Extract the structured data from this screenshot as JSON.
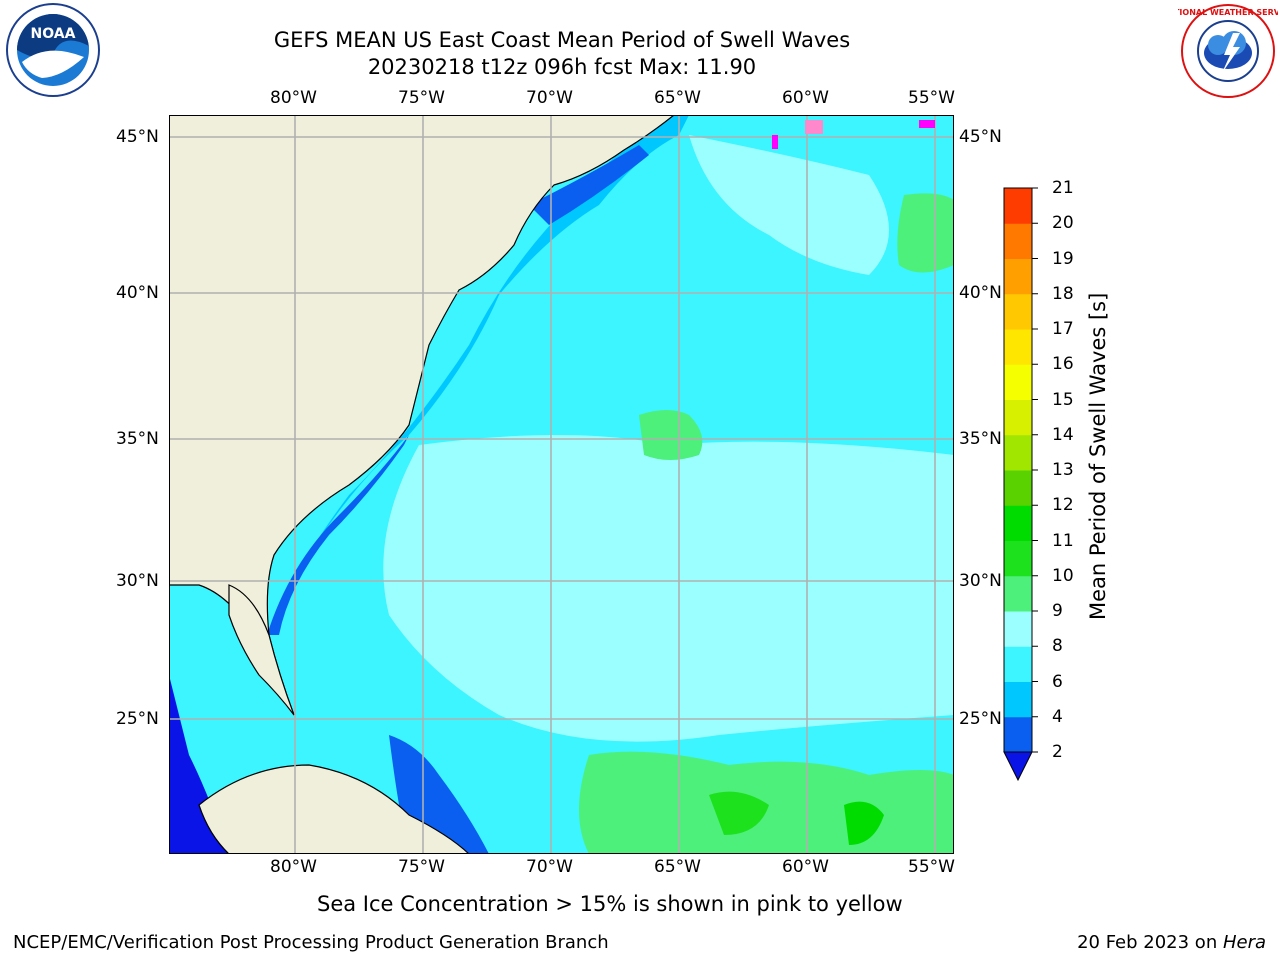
{
  "header": {
    "title_line1": "GEFS MEAN US East Coast Mean Period of Swell Waves",
    "title_line2": "20230218 t12z 096h fcst   Max: 11.90"
  },
  "logos": {
    "left_name": "noaa-logo",
    "left_text": "NOAA",
    "right_name": "nws-logo",
    "right_text": "NATIONAL WEATHER SERVICE"
  },
  "map": {
    "lon_labels": [
      "80°W",
      "75°W",
      "70°W",
      "65°W",
      "60°W",
      "55°W"
    ],
    "lat_labels": [
      "45°N",
      "40°N",
      "35°N",
      "30°N",
      "25°N"
    ],
    "land_color": "#efefdc",
    "grid_color": "#b0b0b0"
  },
  "colorbar": {
    "label": "Mean Period of Swell Waves [s]",
    "ticks": [
      "2",
      "4",
      "6",
      "8",
      "9",
      "10",
      "11",
      "12",
      "13",
      "14",
      "15",
      "16",
      "17",
      "18",
      "19",
      "20",
      "21"
    ],
    "colors": [
      "#0a5ff0",
      "#00c8ff",
      "#3cf5ff",
      "#9cffff",
      "#4df07a",
      "#1ee11e",
      "#00dc00",
      "#5ad200",
      "#a0e600",
      "#d7f000",
      "#f5ff00",
      "#ffe600",
      "#ffc800",
      "#ffa000",
      "#ff7800",
      "#ff3c00",
      "#ff0000"
    ],
    "extend_color": "#0a14e6"
  },
  "note": "Sea Ice Concentration > 15% is shown in pink to yellow",
  "footer": {
    "left": "NCEP/EMC/Verification Post Processing Product Generation Branch",
    "right_date": "20 Feb 2023 on ",
    "right_host": "Hera"
  }
}
